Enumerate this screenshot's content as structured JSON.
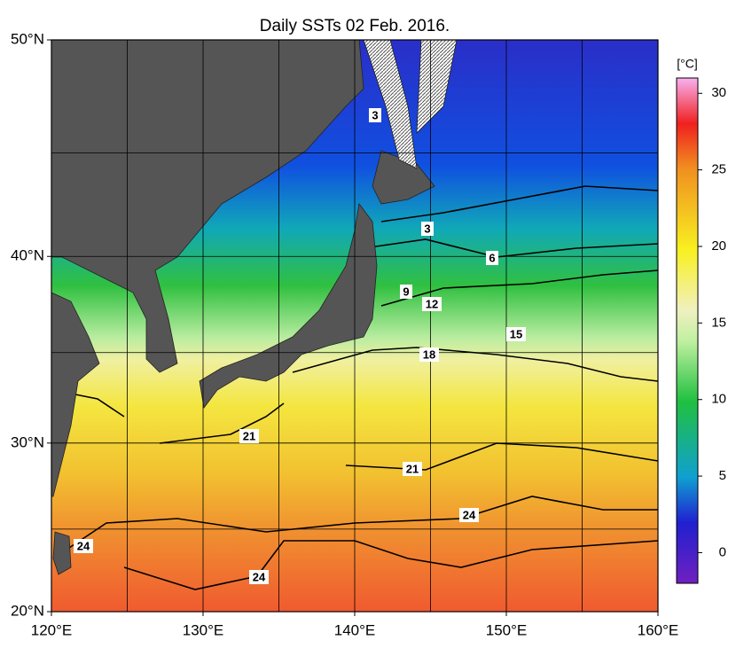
{
  "map": {
    "title": "Daily SSTs 02 Feb. 2016.",
    "xlim": [
      120,
      160
    ],
    "ylim": [
      20,
      50
    ],
    "xticks": [
      {
        "value": 120,
        "label": "120°E"
      },
      {
        "value": 130,
        "label": "130°E"
      },
      {
        "value": 140,
        "label": "140°E"
      },
      {
        "value": 150,
        "label": "150°E"
      },
      {
        "value": 160,
        "label": "160°E"
      }
    ],
    "yticks": [
      {
        "value": 20,
        "label": "20°N"
      },
      {
        "value": 30,
        "label": "30°N"
      },
      {
        "value": 40,
        "label": "40°N"
      },
      {
        "value": 50,
        "label": "50°N"
      }
    ],
    "xgrid": [
      125,
      130,
      135,
      140,
      145,
      150,
      155
    ],
    "ygrid": [
      25,
      30,
      35,
      40,
      45
    ],
    "colorbar": {
      "unit": "[°C]",
      "lim": [
        -2,
        31
      ],
      "ticks": [
        0,
        5,
        10,
        15,
        20,
        25,
        30
      ]
    },
    "contour_labels": [
      3,
      3,
      6,
      9,
      12,
      15,
      18,
      21,
      21,
      24,
      24,
      24
    ]
  }
}
